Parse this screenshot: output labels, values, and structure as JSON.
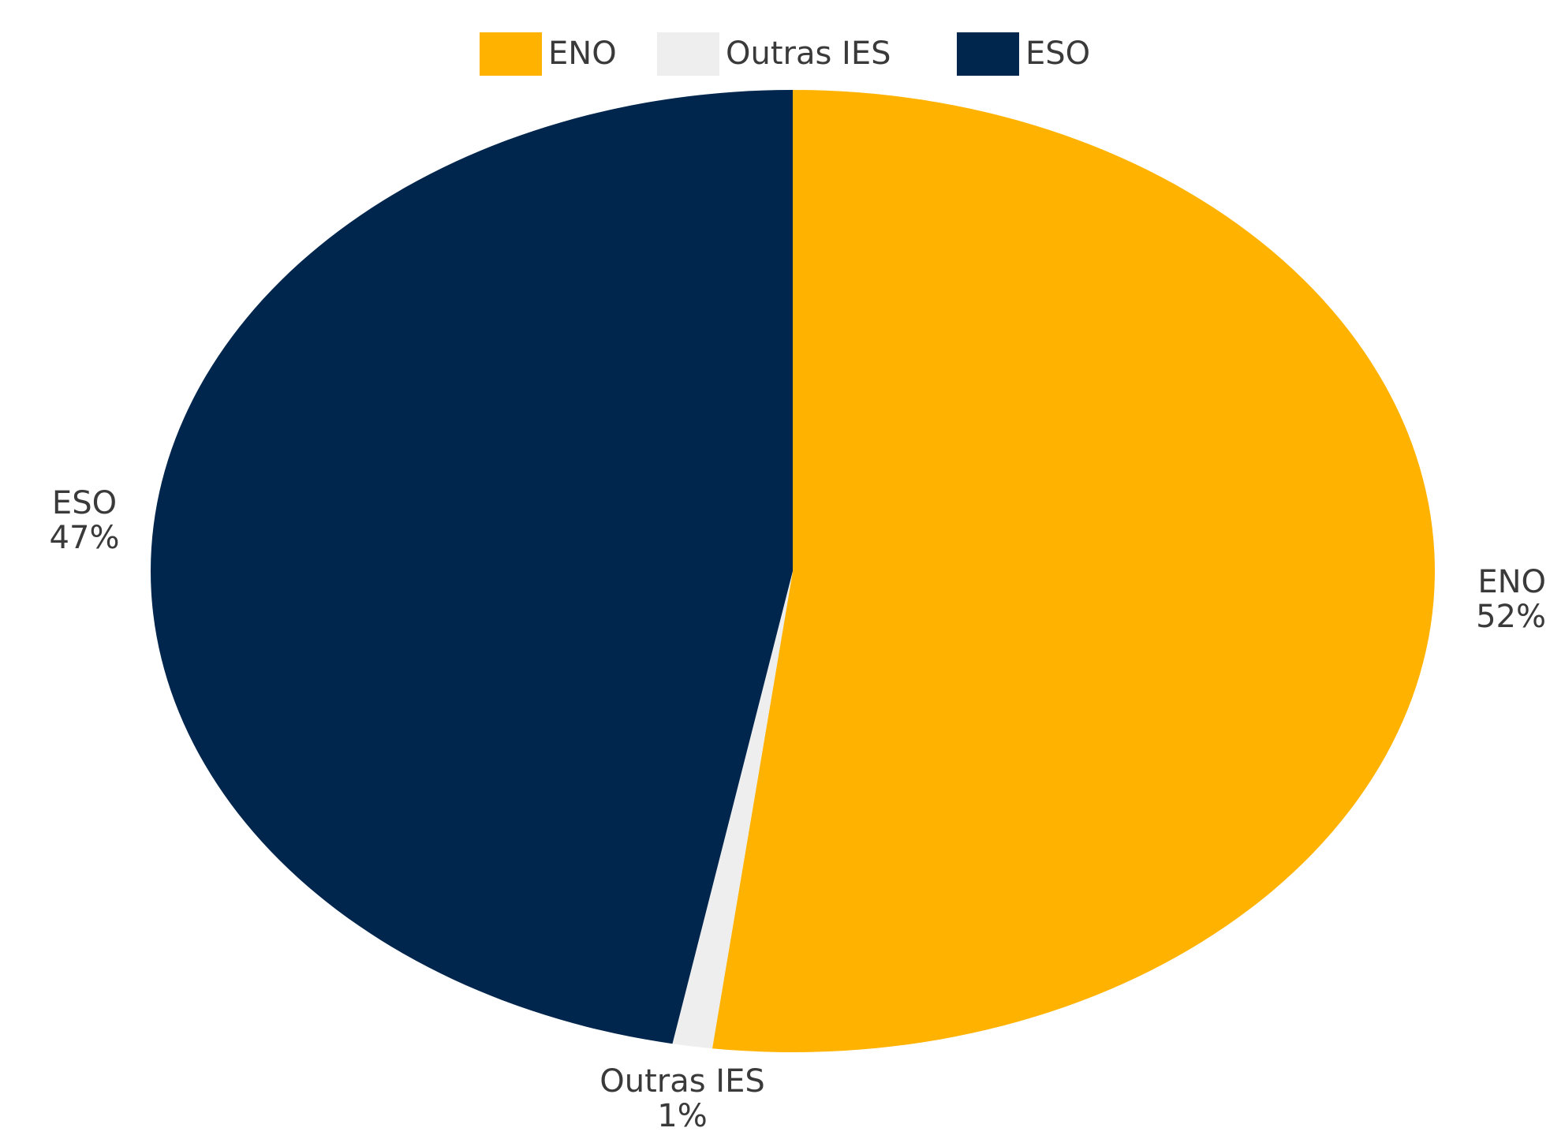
{
  "chart_data": {
    "type": "pie",
    "categories": [
      "ENO",
      "Outras IES",
      "ESO"
    ],
    "values": [
      52,
      1,
      47
    ],
    "value_labels": [
      "52%",
      "1%",
      "47%"
    ],
    "colors": [
      "#FFB300",
      "#EEEEEE",
      "#00264D"
    ],
    "legend": "top"
  }
}
